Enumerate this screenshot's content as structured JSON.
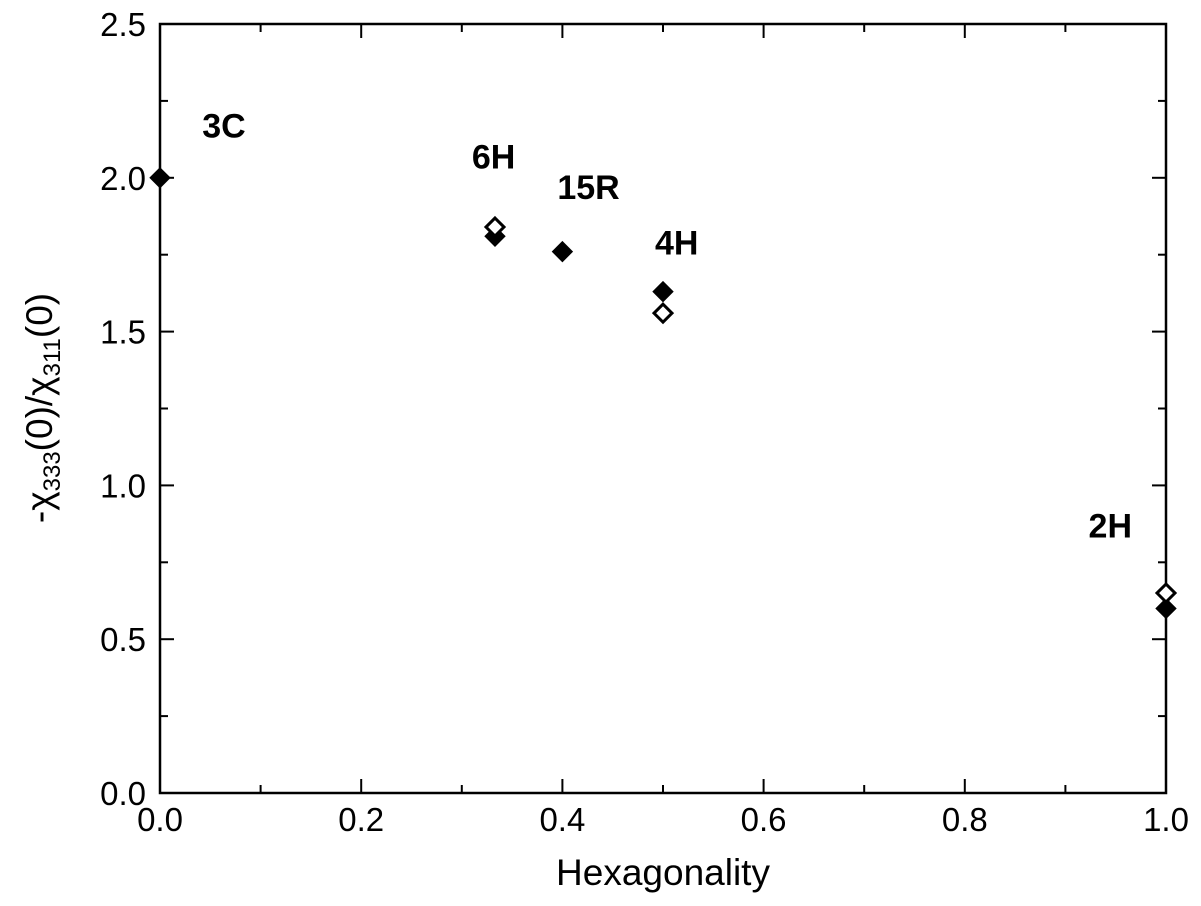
{
  "chart_data": {
    "type": "scatter",
    "title": "",
    "xlabel": "Hexagonality",
    "ylabel": {
      "prefix": "-χ",
      "sub1": "333",
      "middle": "(0)/χ",
      "sub2": "311",
      "suffix": "(0)"
    },
    "xlim": [
      0.0,
      1.0
    ],
    "ylim": [
      0.0,
      2.5
    ],
    "x_ticks": [
      "0.0",
      "0.2",
      "0.4",
      "0.6",
      "0.8",
      "1.0"
    ],
    "y_ticks": [
      "0.0",
      "0.5",
      "1.0",
      "1.5",
      "2.0",
      "2.5"
    ],
    "grid": false,
    "series": [
      {
        "marker": "filled-diamond",
        "color": "#000000",
        "points": [
          {
            "x": 0.0,
            "y": 2.0
          },
          {
            "x": 0.333,
            "y": 1.81
          },
          {
            "x": 0.4,
            "y": 1.76
          },
          {
            "x": 0.5,
            "y": 1.63
          },
          {
            "x": 1.0,
            "y": 0.6
          }
        ]
      },
      {
        "marker": "open-diamond",
        "color": "#000000",
        "points": [
          {
            "x": 0.333,
            "y": 1.84
          },
          {
            "x": 0.5,
            "y": 1.56
          },
          {
            "x": 1.0,
            "y": 0.65
          }
        ]
      }
    ],
    "annotations": [
      {
        "text": "3C",
        "x": 0.042,
        "y": 2.17
      },
      {
        "text": "6H",
        "x": 0.31,
        "y": 2.07
      },
      {
        "text": "15R",
        "x": 0.395,
        "y": 1.97
      },
      {
        "text": "4H",
        "x": 0.492,
        "y": 1.79
      },
      {
        "text": "2H",
        "x": 0.923,
        "y": 0.87
      }
    ]
  }
}
